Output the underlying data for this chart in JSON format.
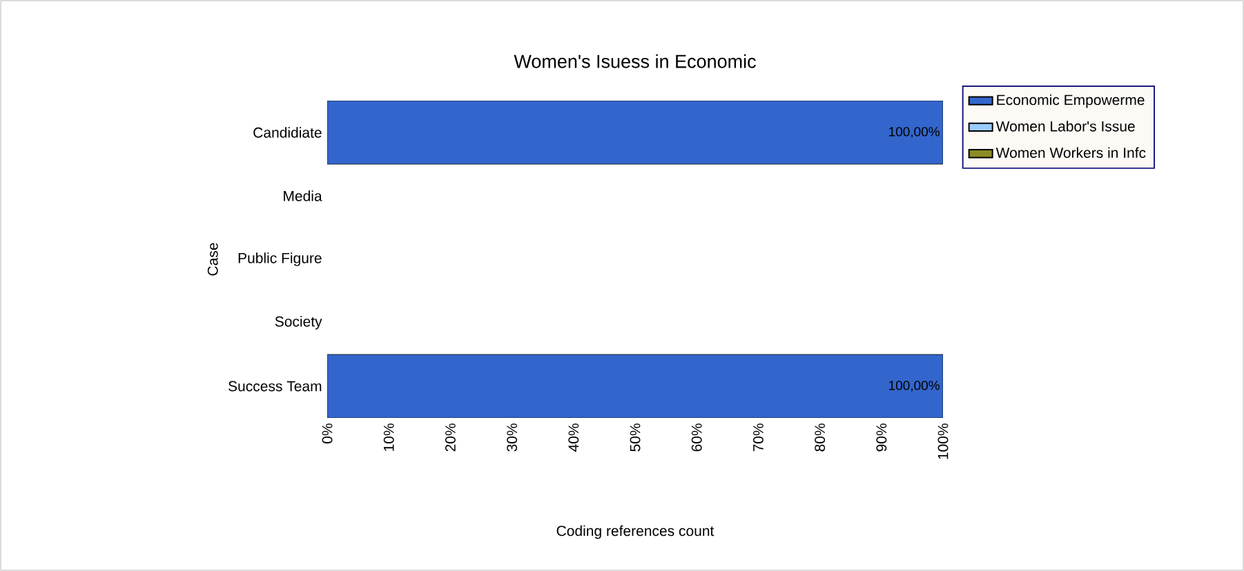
{
  "chart_data": {
    "type": "bar",
    "orientation": "horizontal",
    "title": "Women's Isuess in Economic",
    "xlabel": "Coding references count",
    "ylabel": "Case",
    "categories": [
      "Candidiate",
      "Media",
      "Public Figure",
      "Society",
      "Success Team"
    ],
    "series": [
      {
        "name": "Economic Empowerme",
        "color": "#3366cc",
        "values": [
          100,
          null,
          null,
          null,
          100
        ],
        "value_labels": [
          "100,00%",
          null,
          null,
          null,
          "100,00%"
        ]
      },
      {
        "name": "Women Labor's Issue",
        "color": "#99ccff",
        "values": [
          null,
          null,
          null,
          null,
          null
        ]
      },
      {
        "name": "Women Workers in Infc",
        "color": "#8c8c28",
        "values": [
          null,
          null,
          null,
          null,
          null
        ]
      }
    ],
    "xlim": [
      0,
      100
    ],
    "xticks": [
      {
        "value": 0,
        "label": "0%"
      },
      {
        "value": 10,
        "label": "10%"
      },
      {
        "value": 20,
        "label": "20%"
      },
      {
        "value": 30,
        "label": "30%"
      },
      {
        "value": 40,
        "label": "40%"
      },
      {
        "value": 50,
        "label": "50%"
      },
      {
        "value": 60,
        "label": "60%"
      },
      {
        "value": 70,
        "label": "70%"
      },
      {
        "value": 80,
        "label": "80%"
      },
      {
        "value": 90,
        "label": "90%"
      },
      {
        "value": 100,
        "label": "100%"
      }
    ],
    "legend": "right"
  }
}
